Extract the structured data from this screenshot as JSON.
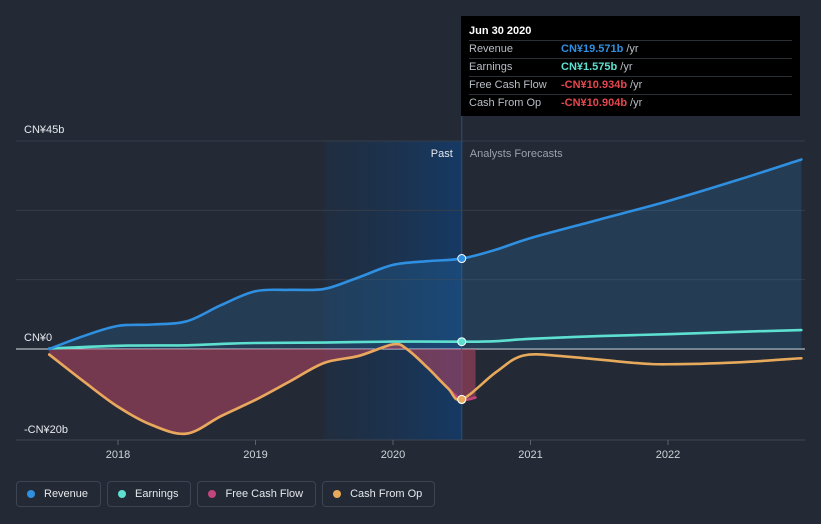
{
  "chart_data": {
    "type": "area",
    "y_unit": "CN¥ billions",
    "ylim": [
      -20,
      45
    ],
    "y_ticks": [
      {
        "value": 45,
        "label": "CN¥45b"
      },
      {
        "value": 0,
        "label": "CN¥0"
      },
      {
        "value": -20,
        "label": "-CN¥20b"
      }
    ],
    "x_range": [
      2017.4,
      2022.97
    ],
    "x_ticks": [
      {
        "value": 2018,
        "label": "2018"
      },
      {
        "value": 2019,
        "label": "2019"
      },
      {
        "value": 2020,
        "label": "2020"
      },
      {
        "value": 2021,
        "label": "2021"
      },
      {
        "value": 2022,
        "label": "2022"
      }
    ],
    "past_start": 2019.5,
    "divider": 2020.5,
    "past_label": "Past",
    "forecast_label": "Analysts Forecasts",
    "series": [
      {
        "name": "Revenue",
        "color": "#2f8fe0",
        "fill": "area",
        "points": [
          [
            2017.5,
            0
          ],
          [
            2017.75,
            2.8
          ],
          [
            2018.0,
            5.0
          ],
          [
            2018.25,
            5.3
          ],
          [
            2018.5,
            6.0
          ],
          [
            2018.75,
            9.5
          ],
          [
            2019.0,
            12.5
          ],
          [
            2019.25,
            12.8
          ],
          [
            2019.5,
            13.0
          ],
          [
            2019.75,
            15.5
          ],
          [
            2020.0,
            18.2
          ],
          [
            2020.25,
            19.0
          ],
          [
            2020.5,
            19.571
          ],
          [
            2020.75,
            21.5
          ],
          [
            2021.0,
            24.0
          ],
          [
            2021.5,
            28.0
          ],
          [
            2022.0,
            32.0
          ],
          [
            2022.5,
            36.5
          ],
          [
            2022.97,
            41.0
          ]
        ],
        "marker_at": 2020.5
      },
      {
        "name": "Earnings",
        "color": "#5ee0d0",
        "fill": "none",
        "points": [
          [
            2017.5,
            0.1
          ],
          [
            2018.0,
            0.7
          ],
          [
            2018.5,
            0.8
          ],
          [
            2018.75,
            1.1
          ],
          [
            2019.0,
            1.3
          ],
          [
            2019.5,
            1.4
          ],
          [
            2020.0,
            1.6
          ],
          [
            2020.5,
            1.575
          ],
          [
            2020.75,
            1.7
          ],
          [
            2021.0,
            2.2
          ],
          [
            2021.5,
            2.8
          ],
          [
            2022.0,
            3.2
          ],
          [
            2022.5,
            3.7
          ],
          [
            2022.97,
            4.1
          ]
        ],
        "marker_at": 2020.5
      },
      {
        "name": "Free Cash Flow",
        "color": "#c2457b",
        "fill": "area",
        "points": [
          [
            2017.5,
            -1.2
          ],
          [
            2017.75,
            -7.0
          ],
          [
            2018.0,
            -12.5
          ],
          [
            2018.25,
            -16.5
          ],
          [
            2018.5,
            -18.3
          ],
          [
            2018.75,
            -14.5
          ],
          [
            2019.0,
            -11.0
          ],
          [
            2019.25,
            -7.0
          ],
          [
            2019.5,
            -3.0
          ],
          [
            2019.75,
            -1.5
          ],
          [
            2020.0,
            1.0
          ],
          [
            2020.1,
            0.0
          ],
          [
            2020.25,
            -4.0
          ],
          [
            2020.4,
            -8.5
          ],
          [
            2020.5,
            -10.934
          ],
          [
            2020.6,
            -10.5
          ]
        ],
        "marker_at": 2020.5
      },
      {
        "name": "Cash From Op",
        "color": "#e7a95b",
        "fill": "none",
        "points": [
          [
            2017.5,
            -1.2
          ],
          [
            2017.75,
            -7.0
          ],
          [
            2018.0,
            -12.5
          ],
          [
            2018.25,
            -16.5
          ],
          [
            2018.5,
            -18.3
          ],
          [
            2018.75,
            -14.5
          ],
          [
            2019.0,
            -11.0
          ],
          [
            2019.25,
            -7.0
          ],
          [
            2019.5,
            -3.0
          ],
          [
            2019.75,
            -1.5
          ],
          [
            2020.0,
            1.0
          ],
          [
            2020.1,
            0.0
          ],
          [
            2020.25,
            -4.0
          ],
          [
            2020.4,
            -8.5
          ],
          [
            2020.5,
            -10.904
          ],
          [
            2020.75,
            -5.0
          ],
          [
            2020.95,
            -1.4
          ],
          [
            2021.25,
            -1.6
          ],
          [
            2021.75,
            -3.0
          ],
          [
            2022.0,
            -3.3
          ],
          [
            2022.5,
            -2.9
          ],
          [
            2022.97,
            -2.0
          ]
        ],
        "marker_at": 2020.5
      }
    ]
  },
  "tooltip": {
    "date": "Jun 30 2020",
    "rows": [
      {
        "name": "Revenue",
        "value": "CN¥19.571b",
        "unit": "/yr",
        "color": "#2f8fe0"
      },
      {
        "name": "Earnings",
        "value": "CN¥1.575b",
        "unit": "/yr",
        "color": "#5ee0d0"
      },
      {
        "name": "Free Cash Flow",
        "value": "-CN¥10.934b",
        "unit": "/yr",
        "color": "#e5474f"
      },
      {
        "name": "Cash From Op",
        "value": "-CN¥10.904b",
        "unit": "/yr",
        "color": "#e5474f"
      }
    ]
  },
  "legend": [
    {
      "label": "Revenue",
      "color": "#2f8fe0"
    },
    {
      "label": "Earnings",
      "color": "#5ee0d0"
    },
    {
      "label": "Free Cash Flow",
      "color": "#c2457b"
    },
    {
      "label": "Cash From Op",
      "color": "#e7a95b"
    }
  ]
}
